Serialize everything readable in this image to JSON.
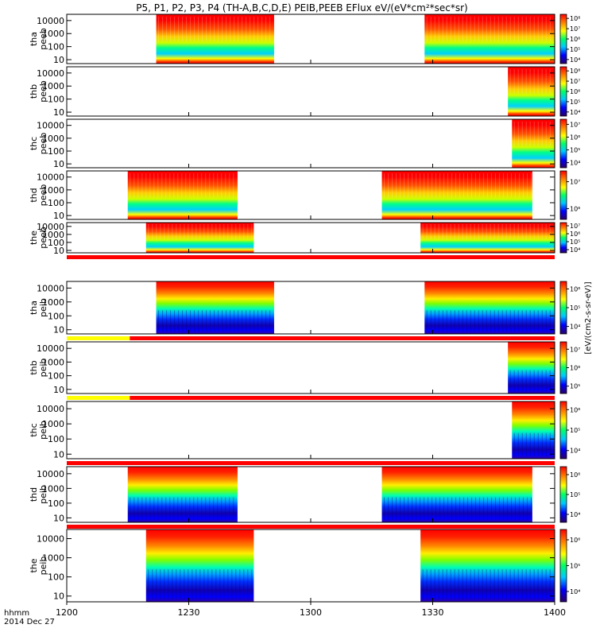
{
  "chart_data": {
    "type": "heatmap",
    "title": "P5, P1, P2, P3, P4 (TH-A,B,C,D,E) PEIB,PEEB EFlux eV/(eV*cm²*sec*sr)",
    "x_axis": {
      "tick_labels": [
        "1200",
        "1230",
        "1300",
        "1330",
        "1400"
      ],
      "tick_values_min": [
        0,
        30,
        60,
        90,
        120
      ],
      "range_min": [
        0,
        120
      ],
      "corner_label_1": "hhmm",
      "corner_label_2": "2014 Dec 27"
    },
    "y_axis": {
      "scale": "log",
      "tick_labels": [
        "10",
        "100",
        "1000",
        "10000"
      ],
      "tick_values": [
        10,
        100,
        1000,
        10000
      ],
      "range": [
        5,
        30000
      ]
    },
    "colorbar": {
      "label": "[eV/(cm2-s-sr-eV)]",
      "colormap": "rainbow",
      "colors": [
        "#2a0066",
        "#0000ff",
        "#00c8ff",
        "#00ff66",
        "#ffff00",
        "#ff8000",
        "#ff0000"
      ]
    },
    "panels": [
      {
        "label_1": "tha",
        "label_2": "peeb",
        "cb_ticks": [
          "10⁴",
          "10⁵",
          "10⁶",
          "10⁷",
          "10⁸"
        ],
        "cb_exp": [
          4,
          5,
          6,
          7,
          8
        ],
        "species": "electron",
        "intervals_min": [
          [
            22,
            51
          ],
          [
            88,
            120
          ]
        ],
        "status_bar": null
      },
      {
        "label_1": "thb",
        "label_2": "peeb",
        "cb_ticks": [
          "10⁴",
          "10⁵",
          "10⁶",
          "10⁷",
          "10⁸"
        ],
        "cb_exp": [
          4,
          5,
          6,
          7,
          8
        ],
        "species": "electron",
        "intervals_min": [
          [
            108.5,
            120
          ]
        ],
        "status_bar": null
      },
      {
        "label_1": "thc",
        "label_2": "peeb",
        "cb_ticks": [
          "10⁴",
          "10⁵",
          "10⁶",
          "10⁷"
        ],
        "cb_exp": [
          4,
          5,
          6,
          7
        ],
        "species": "electron",
        "intervals_min": [
          [
            109.5,
            120
          ]
        ],
        "status_bar": null
      },
      {
        "label_1": "thd",
        "label_2": "peeb",
        "cb_ticks": [
          "10⁶",
          "10⁷"
        ],
        "cb_exp": [
          6,
          7
        ],
        "species": "electron",
        "intervals_min": [
          [
            15,
            42
          ],
          [
            77.5,
            114.5
          ]
        ],
        "status_bar": null
      },
      {
        "label_1": "the",
        "label_2": "peeb",
        "cb_ticks": [
          "10⁴",
          "10⁵",
          "10⁶",
          "10⁷"
        ],
        "cb_exp": [
          4,
          5,
          6,
          7
        ],
        "species": "electron",
        "intervals_min": [
          [
            19.5,
            46
          ],
          [
            87,
            120
          ]
        ],
        "status_bar": [
          {
            "from_min": 0,
            "to_min": 120,
            "color": "#ff0000"
          }
        ]
      },
      {
        "label_1": "tha",
        "label_2": "peib",
        "cb_ticks": [
          "10⁴",
          "10⁵",
          "10⁶"
        ],
        "cb_exp": [
          4,
          5,
          6
        ],
        "species": "ion",
        "intervals_min": [
          [
            22,
            51
          ],
          [
            88,
            120
          ]
        ],
        "status_bar": [
          {
            "from_min": 0,
            "to_min": 15.5,
            "color": "#ffff00"
          },
          {
            "from_min": 15.5,
            "to_min": 120,
            "color": "#ff0000"
          }
        ]
      },
      {
        "label_1": "thb",
        "label_2": "peib",
        "cb_ticks": [
          "10⁵",
          "10⁶",
          "10⁷"
        ],
        "cb_exp": [
          5,
          6,
          7
        ],
        "species": "ion",
        "intervals_min": [
          [
            108.5,
            120
          ]
        ],
        "status_bar": [
          {
            "from_min": 0,
            "to_min": 15.5,
            "color": "#ffff00"
          },
          {
            "from_min": 15.5,
            "to_min": 120,
            "color": "#ff0000"
          }
        ]
      },
      {
        "label_1": "thc",
        "label_2": "peib",
        "cb_ticks": [
          "10⁴",
          "10⁵",
          "10⁶"
        ],
        "cb_exp": [
          4,
          5,
          6
        ],
        "species": "ion",
        "intervals_min": [
          [
            109.5,
            120
          ]
        ],
        "status_bar": [
          {
            "from_min": 0,
            "to_min": 120,
            "color": "#ff0000"
          }
        ]
      },
      {
        "label_1": "thd",
        "label_2": "peib",
        "cb_ticks": [
          "10⁴",
          "10⁵",
          "10⁶"
        ],
        "cb_exp": [
          4,
          5,
          6
        ],
        "species": "ion",
        "intervals_min": [
          [
            15,
            42
          ],
          [
            77.5,
            114.5
          ]
        ],
        "status_bar": [
          {
            "from_min": 0,
            "to_min": 120,
            "color": "#ff0000"
          }
        ]
      },
      {
        "label_1": "the",
        "label_2": "peib",
        "cb_ticks": [
          "10⁴",
          "10⁵",
          "10⁶"
        ],
        "cb_exp": [
          4,
          5,
          6
        ],
        "species": "ion",
        "intervals_min": [
          [
            19.5,
            46
          ],
          [
            87,
            120
          ]
        ],
        "status_bar": null
      }
    ]
  }
}
